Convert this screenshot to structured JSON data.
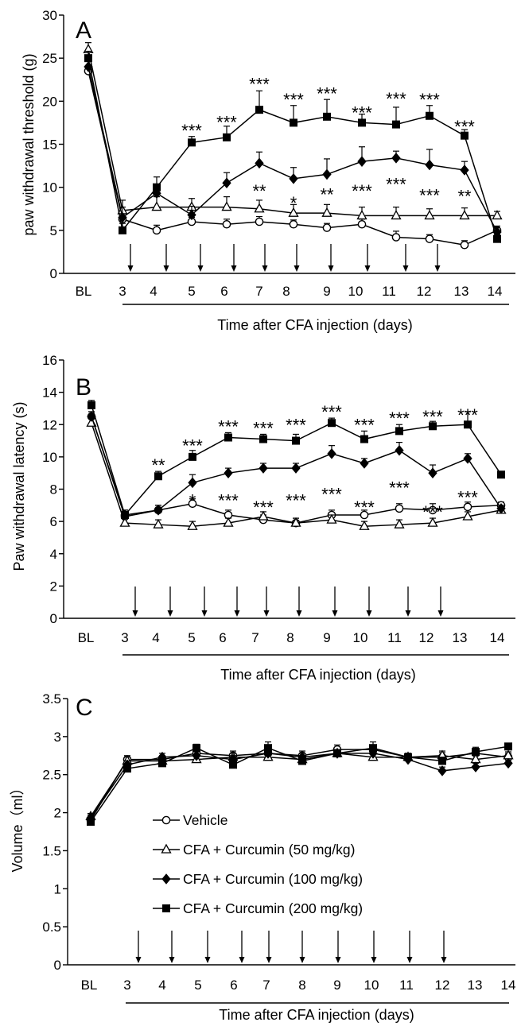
{
  "chart_data": [
    {
      "type": "line",
      "panel": "A",
      "ylabel": "paw withdrawal threshold (g)",
      "xlabel": "Time after CFA injection (days)",
      "ylim": [
        0,
        30
      ],
      "yticks": [
        "0",
        "5",
        "10",
        "15",
        "20",
        "25",
        "30"
      ],
      "categories": [
        "BL",
        "3",
        "4",
        "5",
        "6",
        "7",
        "8",
        "9",
        "10",
        "11",
        "12",
        "13",
        "14"
      ],
      "arrow_after": [
        "3",
        "4",
        "5",
        "6",
        "7",
        "8",
        "9",
        "10",
        "11",
        "12"
      ],
      "series": [
        {
          "name": "Vehicle",
          "marker": "circle-open",
          "values": [
            23.5,
            6.3,
            5.0,
            6.0,
            5.7,
            6.0,
            5.7,
            5.3,
            5.7,
            4.2,
            4.0,
            3.3,
            5.0
          ],
          "errors": [
            0.5,
            0.8,
            0.6,
            0.5,
            0.6,
            0.6,
            0.5,
            0.5,
            0.6,
            0.7,
            0.5,
            0.5,
            0.5
          ]
        },
        {
          "name": "CFA + Curcumin (50 mg/kg)",
          "marker": "triangle-open",
          "values": [
            26.0,
            7.3,
            7.7,
            7.7,
            7.7,
            7.5,
            7.0,
            7.0,
            6.7,
            6.7,
            6.7,
            6.7,
            6.7
          ],
          "errors": [
            0.8,
            1.2,
            1.2,
            1.0,
            1.2,
            1.0,
            1.0,
            1.0,
            1.0,
            1.0,
            0.8,
            0.9,
            0.5
          ]
        },
        {
          "name": "CFA + Curcumin (100 mg/kg)",
          "marker": "diamond-filled",
          "values": [
            24.0,
            6.5,
            9.3,
            6.8,
            10.5,
            12.8,
            11.0,
            11.5,
            13.0,
            13.4,
            12.6,
            12.0,
            4.8
          ],
          "errors": [
            0.8,
            1.2,
            1.0,
            1.0,
            1.2,
            1.3,
            1.3,
            1.8,
            1.7,
            0.8,
            1.8,
            1.0,
            0.5
          ]
        },
        {
          "name": "CFA + Curcumin (200 mg/kg)",
          "marker": "square-filled",
          "values": [
            25.0,
            5.0,
            10.0,
            15.2,
            15.8,
            19.0,
            17.5,
            18.2,
            17.5,
            17.3,
            18.3,
            16.0,
            4.0
          ],
          "errors": [
            0.8,
            0.8,
            1.2,
            0.7,
            1.3,
            2.2,
            2.0,
            2.0,
            1.0,
            2.0,
            1.2,
            0.7,
            0.5
          ]
        }
      ],
      "annotations": [
        {
          "x": "5",
          "y": 16.6,
          "text": "***"
        },
        {
          "x": "6",
          "y": 17.6,
          "text": "***"
        },
        {
          "x": "7",
          "y": 22.0,
          "text": "***"
        },
        {
          "x": "8",
          "y": 20.2,
          "text": "***"
        },
        {
          "x": "9",
          "y": 20.9,
          "text": "***"
        },
        {
          "x": "10",
          "y": 18.7,
          "text": "***"
        },
        {
          "x": "11",
          "y": 20.3,
          "text": "***"
        },
        {
          "x": "12",
          "y": 20.2,
          "text": "***"
        },
        {
          "x": "13",
          "y": 17.1,
          "text": "***"
        },
        {
          "x": "7",
          "y": 9.6,
          "text": "**"
        },
        {
          "x": "8",
          "y": 8.2,
          "text": "*"
        },
        {
          "x": "9",
          "y": 9.2,
          "text": "**"
        },
        {
          "x": "10",
          "y": 9.6,
          "text": "***"
        },
        {
          "x": "11",
          "y": 10.4,
          "text": "***"
        },
        {
          "x": "12",
          "y": 9.1,
          "text": "***"
        },
        {
          "x": "13",
          "y": 9.0,
          "text": "**"
        }
      ]
    },
    {
      "type": "line",
      "panel": "B",
      "ylabel": "Paw withdrawal latency (s)",
      "xlabel": "Time after CFA injection (days)",
      "ylim": [
        0,
        16
      ],
      "yticks": [
        "0",
        "2",
        "4",
        "6",
        "8",
        "10",
        "12",
        "14",
        "16"
      ],
      "categories": [
        "BL",
        "3",
        "4",
        "5",
        "6",
        "7",
        "8",
        "9",
        "10",
        "11",
        "12",
        "13",
        "14"
      ],
      "arrow_after": [
        "3",
        "4",
        "5",
        "6",
        "7",
        "8",
        "9",
        "10",
        "11",
        "12"
      ],
      "series": [
        {
          "name": "Vehicle",
          "marker": "circle-open",
          "values": [
            12.5,
            6.3,
            6.7,
            7.1,
            6.4,
            6.1,
            5.9,
            6.4,
            6.4,
            6.8,
            6.7,
            6.9,
            7.0
          ],
          "errors": [
            0.3,
            0.3,
            0.3,
            0.3,
            0.3,
            0.3,
            0.3,
            0.3,
            0.3,
            0.3,
            0.4,
            0.3,
            0.2
          ]
        },
        {
          "name": "CFA + Curcumin (50 mg/kg)",
          "marker": "triangle-open",
          "values": [
            12.1,
            5.9,
            5.8,
            5.7,
            5.9,
            6.3,
            5.9,
            6.1,
            5.7,
            5.8,
            5.9,
            6.3,
            6.7
          ],
          "errors": [
            0.3,
            0.3,
            0.3,
            0.3,
            0.3,
            0.3,
            0.3,
            0.3,
            0.3,
            0.3,
            0.3,
            0.3,
            0.2
          ]
        },
        {
          "name": "CFA + Curcumin (100 mg/kg)",
          "marker": "diamond-filled",
          "values": [
            12.5,
            6.4,
            6.7,
            8.4,
            9.0,
            9.3,
            9.3,
            10.2,
            9.6,
            10.4,
            9.0,
            9.9,
            6.8
          ],
          "errors": [
            0.3,
            0.3,
            0.3,
            0.5,
            0.3,
            0.3,
            0.3,
            0.5,
            0.3,
            0.5,
            0.5,
            0.3,
            0.2
          ]
        },
        {
          "name": "CFA + Curcumin (200 mg/kg)",
          "marker": "square-filled",
          "values": [
            13.2,
            6.4,
            8.8,
            10.0,
            11.2,
            11.1,
            11.0,
            12.1,
            11.1,
            11.6,
            11.9,
            12.0,
            8.9
          ],
          "errors": [
            0.3,
            0.3,
            0.3,
            0.4,
            0.3,
            0.3,
            0.4,
            0.3,
            0.5,
            0.4,
            0.3,
            0.8,
            0.2
          ]
        }
      ],
      "annotations": [
        {
          "x": "4",
          "y": 9.5,
          "text": "**"
        },
        {
          "x": "5",
          "y": 10.7,
          "text": "***"
        },
        {
          "x": "6",
          "y": 11.9,
          "text": "***"
        },
        {
          "x": "7",
          "y": 11.8,
          "text": "***"
        },
        {
          "x": "8",
          "y": 12.0,
          "text": "***"
        },
        {
          "x": "9",
          "y": 12.8,
          "text": "***"
        },
        {
          "x": "10",
          "y": 12.0,
          "text": "***"
        },
        {
          "x": "11",
          "y": 12.4,
          "text": "***"
        },
        {
          "x": "12",
          "y": 12.5,
          "text": "***"
        },
        {
          "x": "13",
          "y": 12.6,
          "text": "***"
        },
        {
          "x": "5",
          "y": 7.3,
          "text": "*"
        },
        {
          "x": "6",
          "y": 7.3,
          "text": "***"
        },
        {
          "x": "7",
          "y": 6.9,
          "text": "***"
        },
        {
          "x": "8",
          "y": 7.3,
          "text": "***"
        },
        {
          "x": "9",
          "y": 7.7,
          "text": "***"
        },
        {
          "x": "10",
          "y": 6.9,
          "text": "***"
        },
        {
          "x": "11",
          "y": 8.1,
          "text": "***"
        },
        {
          "x": "12",
          "y": 6.6,
          "text": "***"
        },
        {
          "x": "13",
          "y": 7.5,
          "text": "***"
        }
      ]
    },
    {
      "type": "line",
      "panel": "C",
      "ylabel": "Volume（ml）",
      "xlabel": "Time after CFA injection (days)",
      "ylim": [
        0,
        3.5
      ],
      "yticks": [
        "0",
        "0.5",
        "1",
        "1.5",
        "2",
        "2.5",
        "3",
        "3.5"
      ],
      "categories": [
        "BL",
        "3",
        "4",
        "5",
        "6",
        "7",
        "8",
        "9",
        "10",
        "11",
        "12",
        "13",
        "14"
      ],
      "arrow_after": [
        "3",
        "4",
        "5",
        "6",
        "7",
        "8",
        "9",
        "10",
        "11",
        "12"
      ],
      "legend_position": "center",
      "legend": [
        "Vehicle",
        "CFA + Curcumin (50 mg/kg)",
        "CFA + Curcumin (100 mg/kg)",
        "CFA + Curcumin (200 mg/kg)"
      ],
      "series": [
        {
          "name": "Vehicle",
          "marker": "circle-open",
          "values": [
            1.9,
            2.7,
            2.7,
            2.78,
            2.75,
            2.78,
            2.75,
            2.83,
            2.83,
            2.73,
            2.73,
            2.78,
            2.73
          ],
          "errors": [
            0.04,
            0.05,
            0.05,
            0.05,
            0.06,
            0.06,
            0.06,
            0.06,
            0.06,
            0.05,
            0.06,
            0.06,
            0.05
          ]
        },
        {
          "name": "CFA + Curcumin (50 mg/kg)",
          "marker": "triangle-open",
          "values": [
            1.95,
            2.68,
            2.68,
            2.7,
            2.73,
            2.73,
            2.7,
            2.78,
            2.73,
            2.73,
            2.75,
            2.7,
            2.75
          ],
          "errors": [
            0.04,
            0.05,
            0.05,
            0.05,
            0.05,
            0.05,
            0.05,
            0.05,
            0.05,
            0.05,
            0.06,
            0.06,
            0.05
          ]
        },
        {
          "name": "CFA + Curcumin (100 mg/kg)",
          "marker": "diamond-filled",
          "values": [
            1.93,
            2.63,
            2.73,
            2.75,
            2.7,
            2.78,
            2.73,
            2.78,
            2.78,
            2.7,
            2.55,
            2.6,
            2.65
          ],
          "errors": [
            0.04,
            0.05,
            0.05,
            0.05,
            0.05,
            0.05,
            0.05,
            0.05,
            0.05,
            0.05,
            0.05,
            0.05,
            0.04
          ]
        },
        {
          "name": "CFA + Curcumin (200 mg/kg)",
          "marker": "square-filled",
          "values": [
            1.88,
            2.58,
            2.65,
            2.85,
            2.63,
            2.85,
            2.68,
            2.78,
            2.85,
            2.73,
            2.68,
            2.8,
            2.87
          ],
          "errors": [
            0.04,
            0.05,
            0.05,
            0.05,
            0.05,
            0.08,
            0.05,
            0.05,
            0.08,
            0.05,
            0.05,
            0.06,
            0.04
          ]
        }
      ]
    }
  ]
}
